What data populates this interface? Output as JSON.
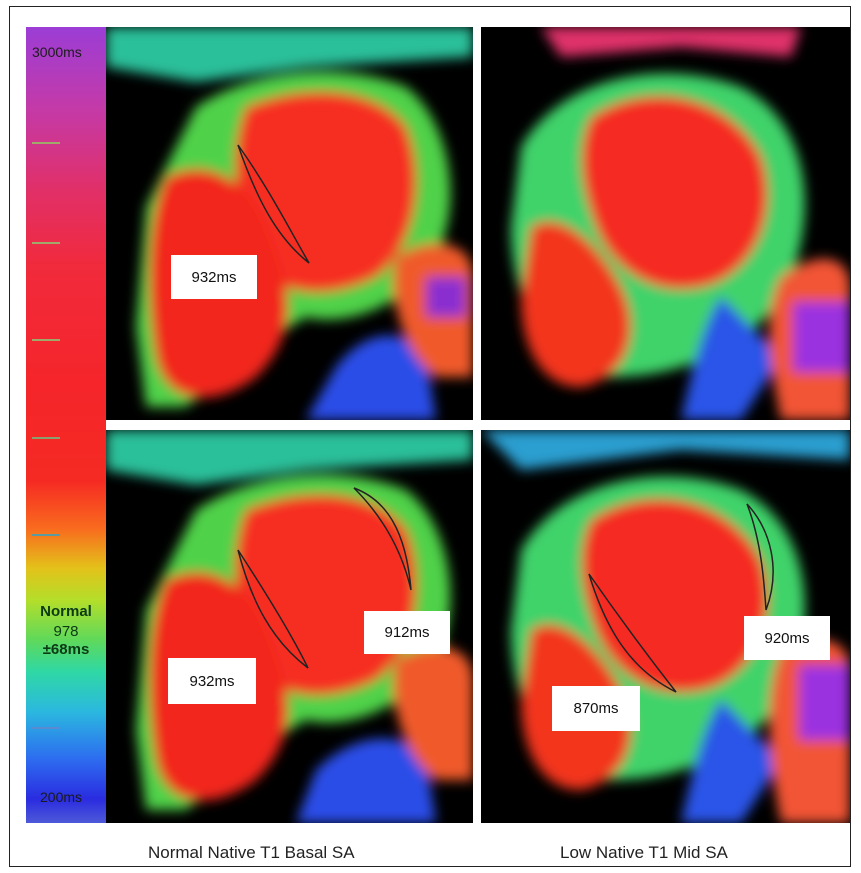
{
  "colorbar": {
    "max_label": "3000ms",
    "min_label": "200ms",
    "normal_title": "Normal",
    "normal_value": "978",
    "normal_range": "±68ms"
  },
  "panels": {
    "top_left_label": "932ms",
    "bottom_left_label_1": "932ms",
    "bottom_left_label_2": "912ms",
    "bottom_right_label_1": "870ms",
    "bottom_right_label_2": "920ms"
  },
  "captions": {
    "left": "Normal Native T1 Basal SA",
    "right": "Low Native T1 Mid SA"
  }
}
